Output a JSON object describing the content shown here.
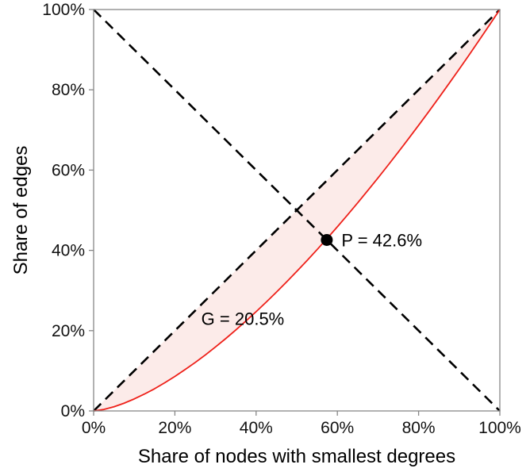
{
  "figure": {
    "background": "#ffffff"
  },
  "chart_data": {
    "type": "line",
    "title": "",
    "xlabel": "Share of nodes with smallest degrees",
    "ylabel": "Share of edges",
    "xlim": [
      0,
      100
    ],
    "ylim": [
      0,
      100
    ],
    "grid": false,
    "legend": false,
    "frame_color": "#878787",
    "text_color": "#111111",
    "tick_length": 6,
    "xticks": {
      "values": [
        0,
        20,
        40,
        60,
        80,
        100
      ],
      "labels": [
        "0%",
        "20%",
        "40%",
        "60%",
        "80%",
        "100%"
      ]
    },
    "yticks": {
      "values": [
        0,
        20,
        40,
        60,
        80,
        100
      ],
      "labels": [
        "0%",
        "20%",
        "40%",
        "60%",
        "80%",
        "100%"
      ]
    },
    "series": [
      {
        "name": "equality-line",
        "style": "dashed",
        "color": "#000000",
        "width": 2.6,
        "x": [
          0,
          100
        ],
        "y": [
          0,
          100
        ]
      },
      {
        "name": "anti-diagonal-line",
        "style": "dashed",
        "color": "#000000",
        "width": 2.6,
        "x": [
          0,
          100
        ],
        "y": [
          100,
          0
        ]
      },
      {
        "name": "lorenz-curve",
        "style": "solid",
        "color": "#ee2019",
        "width": 1.8,
        "fill_to_equality_line": true,
        "fill_color": "#fcebe9",
        "x": [
          0,
          2.5,
          5,
          7.5,
          10,
          12.5,
          15,
          17.5,
          20,
          22.5,
          25,
          27.5,
          30,
          32.5,
          35,
          37.5,
          40,
          42.5,
          45,
          47.5,
          50,
          52.5,
          55,
          57.5,
          60,
          62.5,
          65,
          67.5,
          70,
          72.5,
          75,
          77.5,
          80,
          82.5,
          85,
          87.5,
          90,
          92.5,
          95,
          97.5,
          100
        ],
        "y": [
          0,
          0.36,
          1.04,
          1.93,
          2.99,
          4.2,
          5.53,
          7.01,
          8.59,
          10.29,
          12.07,
          13.94,
          15.94,
          18.01,
          20.17,
          22.41,
          24.73,
          27.12,
          29.59,
          32.13,
          34.75,
          37.43,
          40.18,
          43.0,
          45.88,
          48.83,
          51.84,
          54.92,
          58.04,
          61.24,
          64.49,
          67.79,
          71.16,
          74.57,
          78.05,
          81.58,
          85.15,
          88.79,
          92.48,
          96.21,
          100
        ]
      }
    ],
    "marker": {
      "name": "pareto-point",
      "x": 57.4,
      "y": 42.6,
      "color": "#000000",
      "radius": 7.5
    },
    "annotations": [
      {
        "id": "pareto-point-label",
        "text": "P = 42.6%",
        "x": 61,
        "y": 42.6,
        "anchor": "start",
        "font_size": 22
      },
      {
        "id": "gini-coefficient-label",
        "text": "G = 20.5%",
        "x": 26.5,
        "y": 23,
        "anchor": "start",
        "font_size": 22
      }
    ]
  }
}
